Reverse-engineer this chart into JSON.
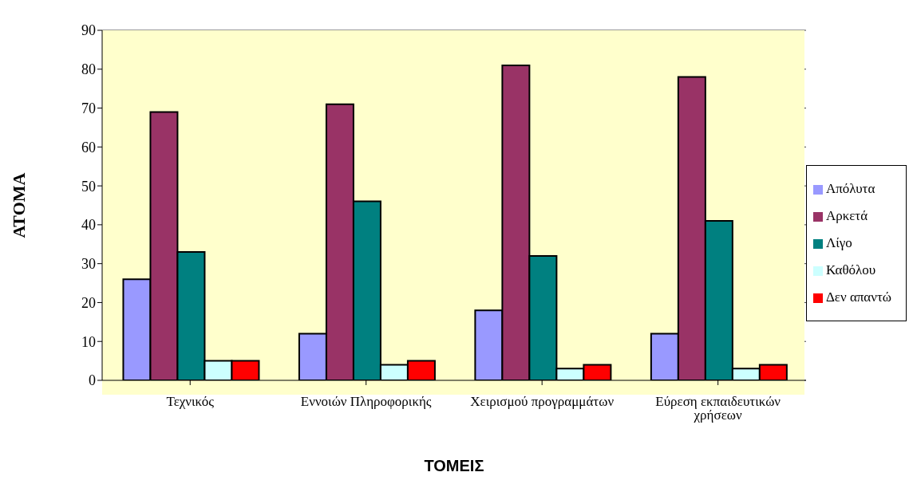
{
  "chart_data": {
    "type": "bar",
    "xlabel": "ΤΟΜΕΙΣ",
    "ylabel": "ΑΤΟΜΑ",
    "categories": [
      "Τεχνικός",
      "Εννοιών Πληροφορικής",
      "Χειρισμού προγραμμάτων",
      "Εύρεση εκπαιδευτικών χρήσεων"
    ],
    "series": [
      {
        "name": "Απόλυτα",
        "color": "#9999ff",
        "values": [
          26,
          12,
          18,
          12
        ]
      },
      {
        "name": "Αρκετά",
        "color": "#993366",
        "values": [
          69,
          71,
          81,
          78
        ]
      },
      {
        "name": "Λίγο",
        "color": "#008080",
        "values": [
          33,
          46,
          32,
          41
        ]
      },
      {
        "name": "Καθόλου",
        "color": "#ccffff",
        "values": [
          5,
          4,
          3,
          3
        ]
      },
      {
        "name": "Δεν απαντώ",
        "color": "#ff0000",
        "values": [
          5,
          5,
          4,
          4
        ]
      }
    ],
    "ylim": [
      0,
      90
    ],
    "yticks": [
      0,
      10,
      20,
      30,
      40,
      50,
      60,
      70,
      80,
      90
    ],
    "grid": "y",
    "legend": "right"
  }
}
